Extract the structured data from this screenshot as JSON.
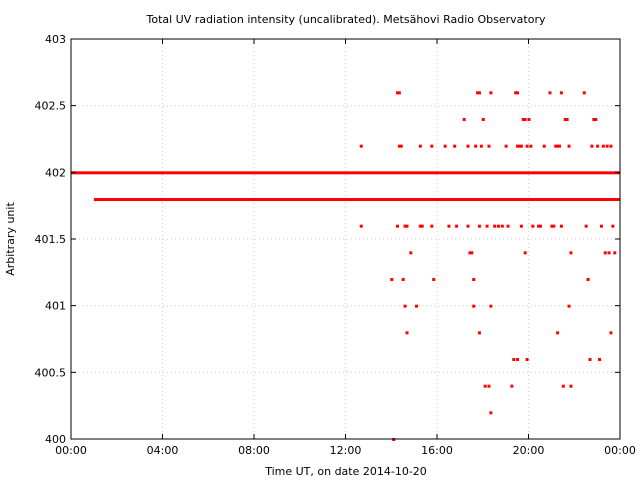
{
  "chart_data": {
    "type": "scatter",
    "title": "Total UV radiation intensity (uncalibrated). Metsähovi Radio Observatory",
    "xlabel": "Time UT, on date 2014-10-20",
    "ylabel": "Arbitrary unit",
    "xlim": [
      "00:00",
      "24:00"
    ],
    "ylim": [
      400,
      403
    ],
    "x_ticks": [
      "00:00",
      "04:00",
      "08:00",
      "12:00",
      "16:00",
      "20:00",
      "00:00"
    ],
    "y_ticks": [
      "400",
      "400.5",
      "401",
      "401.5",
      "402",
      "402.5",
      "403"
    ],
    "grid": true,
    "legend": "none",
    "point_color": "#ff0000",
    "series": [
      {
        "bands": [
          {
            "y": 402.0,
            "from": "00:00",
            "to": "24:00",
            "density": "continuous"
          },
          {
            "y": 401.8,
            "from": "01:00",
            "to": "24:00",
            "density": "continuous"
          }
        ],
        "scattered_points": [
          [
            "12:40",
            402.2
          ],
          [
            "12:40",
            401.6
          ],
          [
            "14:00",
            401.2
          ],
          [
            "14:05",
            400.0
          ],
          [
            "14:15",
            402.6
          ],
          [
            "14:20",
            402.6
          ],
          [
            "14:15",
            401.6
          ],
          [
            "14:20",
            402.2
          ],
          [
            "14:25",
            402.2
          ],
          [
            "14:30",
            401.2
          ],
          [
            "14:35",
            401.6
          ],
          [
            "14:40",
            401.6
          ],
          [
            "14:35",
            401.0
          ],
          [
            "14:40",
            400.8
          ],
          [
            "14:50",
            401.4
          ],
          [
            "15:05",
            401.0
          ],
          [
            "15:15",
            402.2
          ],
          [
            "15:15",
            401.6
          ],
          [
            "15:20",
            401.6
          ],
          [
            "15:45",
            402.2
          ],
          [
            "15:50",
            401.2
          ],
          [
            "15:45",
            401.6
          ],
          [
            "16:20",
            402.2
          ],
          [
            "16:30",
            401.6
          ],
          [
            "16:45",
            402.2
          ],
          [
            "16:50",
            401.6
          ],
          [
            "17:10",
            402.4
          ],
          [
            "17:20",
            402.2
          ],
          [
            "17:20",
            401.6
          ],
          [
            "17:25",
            401.4
          ],
          [
            "17:30",
            401.4
          ],
          [
            "17:35",
            401.2
          ],
          [
            "17:35",
            401.0
          ],
          [
            "17:40",
            402.2
          ],
          [
            "17:45",
            402.6
          ],
          [
            "17:50",
            402.6
          ],
          [
            "17:50",
            401.6
          ],
          [
            "17:50",
            400.8
          ],
          [
            "17:55",
            402.2
          ],
          [
            "18:00",
            402.4
          ],
          [
            "18:05",
            400.4
          ],
          [
            "18:10",
            401.6
          ],
          [
            "18:15",
            402.2
          ],
          [
            "18:15",
            400.4
          ],
          [
            "18:20",
            402.6
          ],
          [
            "18:20",
            401.0
          ],
          [
            "18:20",
            400.2
          ],
          [
            "18:30",
            401.6
          ],
          [
            "18:40",
            401.6
          ],
          [
            "18:50",
            401.6
          ],
          [
            "19:00",
            402.2
          ],
          [
            "19:05",
            401.6
          ],
          [
            "19:15",
            400.4
          ],
          [
            "19:20",
            400.6
          ],
          [
            "19:25",
            402.6
          ],
          [
            "19:30",
            402.6
          ],
          [
            "19:30",
            400.6
          ],
          [
            "19:30",
            402.2
          ],
          [
            "19:35",
            402.2
          ],
          [
            "19:40",
            402.2
          ],
          [
            "19:40",
            401.6
          ],
          [
            "19:45",
            402.4
          ],
          [
            "19:50",
            402.4
          ],
          [
            "19:50",
            401.4
          ],
          [
            "19:55",
            402.2
          ],
          [
            "19:55",
            400.6
          ],
          [
            "20:00",
            402.4
          ],
          [
            "20:05",
            402.2
          ],
          [
            "20:10",
            401.6
          ],
          [
            "20:25",
            401.6
          ],
          [
            "20:30",
            401.6
          ],
          [
            "20:40",
            402.2
          ],
          [
            "20:55",
            402.6
          ],
          [
            "21:00",
            401.6
          ],
          [
            "21:05",
            401.6
          ],
          [
            "21:10",
            402.2
          ],
          [
            "21:15",
            402.2
          ],
          [
            "21:15",
            400.8
          ],
          [
            "21:20",
            402.2
          ],
          [
            "21:25",
            402.6
          ],
          [
            "21:25",
            401.6
          ],
          [
            "21:30",
            400.4
          ],
          [
            "21:35",
            402.4
          ],
          [
            "21:40",
            402.4
          ],
          [
            "21:45",
            402.2
          ],
          [
            "21:45",
            401.0
          ],
          [
            "21:50",
            401.4
          ],
          [
            "21:50",
            400.4
          ],
          [
            "22:25",
            402.6
          ],
          [
            "22:30",
            401.6
          ],
          [
            "22:35",
            401.2
          ],
          [
            "22:40",
            400.6
          ],
          [
            "22:45",
            402.2
          ],
          [
            "22:50",
            402.4
          ],
          [
            "22:55",
            402.4
          ],
          [
            "23:00",
            402.2
          ],
          [
            "23:05",
            400.6
          ],
          [
            "23:10",
            401.6
          ],
          [
            "23:15",
            402.2
          ],
          [
            "23:20",
            401.4
          ],
          [
            "23:25",
            402.2
          ],
          [
            "23:30",
            401.4
          ],
          [
            "23:35",
            402.2
          ],
          [
            "23:35",
            400.8
          ],
          [
            "23:40",
            401.6
          ],
          [
            "23:45",
            401.4
          ]
        ]
      }
    ]
  }
}
